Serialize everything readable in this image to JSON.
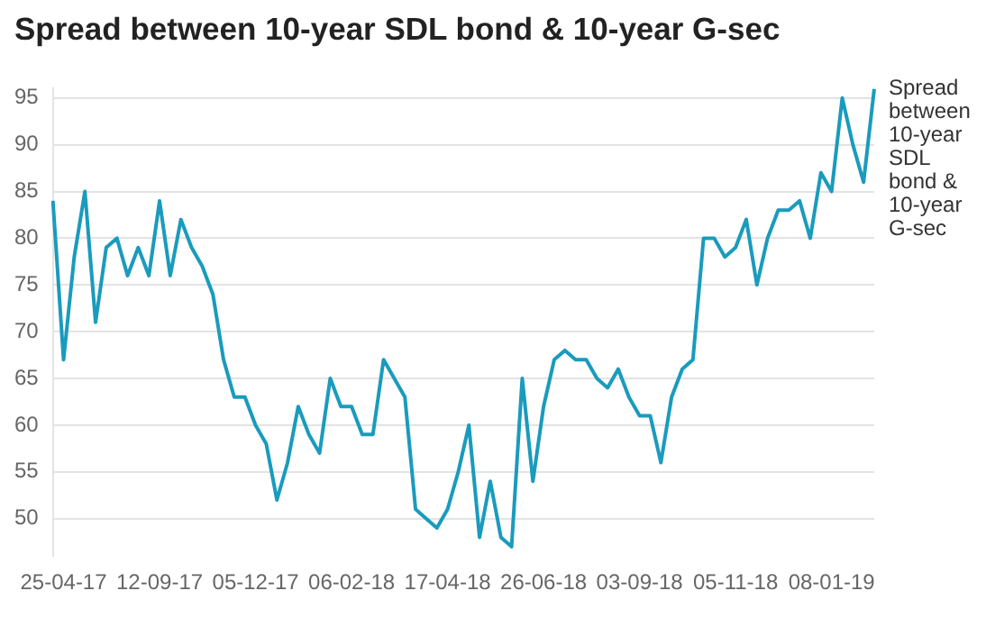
{
  "chart_data": {
    "type": "line",
    "title": "Spread between 10-year SDL bond & 10-year G-sec",
    "categories": [
      null,
      "25-04-17",
      null,
      null,
      null,
      null,
      null,
      null,
      null,
      null,
      "12-09-17",
      null,
      null,
      null,
      null,
      null,
      null,
      null,
      null,
      "05-12-17",
      null,
      null,
      null,
      null,
      null,
      null,
      null,
      null,
      "06-02-18",
      null,
      null,
      null,
      null,
      null,
      null,
      null,
      null,
      "17-04-18",
      null,
      null,
      null,
      null,
      null,
      null,
      null,
      null,
      "26-06-18",
      null,
      null,
      null,
      null,
      null,
      null,
      null,
      null,
      "03-09-18",
      null,
      null,
      null,
      null,
      null,
      null,
      null,
      null,
      "05-11-18",
      null,
      null,
      null,
      null,
      null,
      null,
      null,
      null,
      "08-01-19",
      null,
      null,
      null,
      null
    ],
    "series": [
      {
        "name": "Spread between 10-year SDL bond & 10-year G-sec",
        "color": "#1a9bbd",
        "values": [
          84,
          67,
          78,
          85,
          71,
          79,
          80,
          76,
          79,
          76,
          84,
          76,
          82,
          79,
          77,
          74,
          67,
          63,
          63,
          60,
          58,
          52,
          56,
          62,
          59,
          57,
          65,
          62,
          62,
          59,
          59,
          67,
          65,
          63,
          51,
          50,
          49,
          51,
          55,
          60,
          48,
          54,
          48,
          47,
          65,
          54,
          62,
          67,
          68,
          67,
          67,
          65,
          64,
          66,
          63,
          61,
          61,
          56,
          63,
          66,
          67,
          80,
          80,
          78,
          79,
          82,
          75,
          80,
          83,
          83,
          84,
          80,
          87,
          85,
          95,
          90,
          86,
          96
        ]
      }
    ],
    "ylim": [
      46,
      96
    ],
    "yticks": [
      50,
      55,
      60,
      65,
      70,
      75,
      80,
      85,
      90,
      95
    ],
    "grid": "y",
    "legend": false,
    "marker": "none",
    "line_style": "solid"
  }
}
